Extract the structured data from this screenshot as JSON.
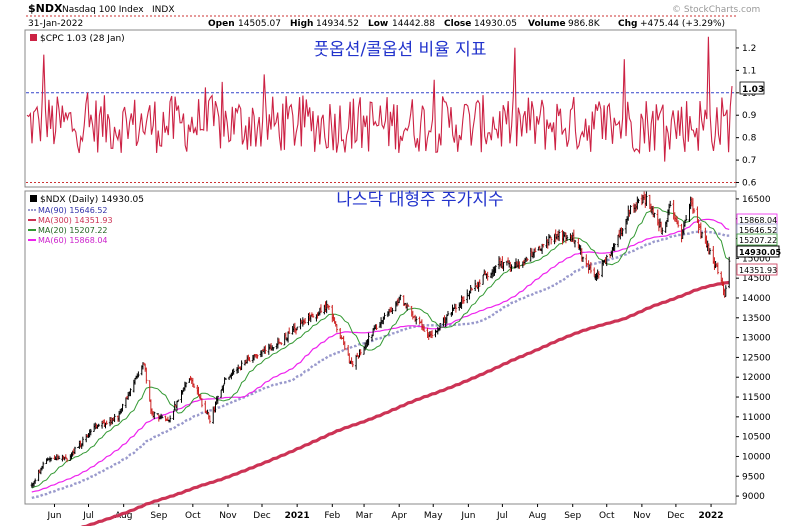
{
  "header": {
    "symbol": "$NDX",
    "name": "Nasdaq 100 Index",
    "exchange": "INDX",
    "date": "31-Jan-2022",
    "watermark": "© StockCharts.com",
    "open_label": "Open",
    "open": "14505.07",
    "high_label": "High",
    "high": "14934.52",
    "low_label": "Low",
    "low": "14442.88",
    "close_label": "Close",
    "close": "14930.05",
    "volume_label": "Volume",
    "volume": "986.8K",
    "chg_label": "Chg",
    "chg": "+475.44 (+3.29%)"
  },
  "chart_data": [
    {
      "type": "line",
      "panel": "top",
      "title": "풋옵션/콜옵션 비율 지표",
      "legend": "$CPC 1.03 (28 Jan)",
      "series": [
        {
          "name": "$CPC",
          "color": "#cc2244",
          "last": 1.03
        }
      ],
      "y_ticks": [
        0.6,
        0.7,
        0.8,
        0.9,
        1.0,
        1.1,
        1.2
      ],
      "ylim": [
        0.58,
        1.28
      ],
      "reference_line": 1.0,
      "last_value_label": "1.03",
      "grid": false
    },
    {
      "type": "line",
      "panel": "bottom",
      "title": "나스닥 대형주 주가지수",
      "legend_main": "$NDX (Daily) 14930.05",
      "series": [
        {
          "name": "MA(90) 15646.52",
          "color": "#9999cc",
          "style": "dotted",
          "last": 15646.52
        },
        {
          "name": "MA(300) 14351.93",
          "color": "#cc3355",
          "style": "thick",
          "last": 14351.93
        },
        {
          "name": "MA(20) 15207.22",
          "color": "#339933",
          "style": "solid",
          "last": 15207.22
        },
        {
          "name": "MA(60) 15868.04",
          "color": "#ee22ee",
          "style": "solid",
          "last": 15868.04
        }
      ],
      "y_ticks": [
        9000,
        9500,
        10000,
        10500,
        11000,
        11500,
        12000,
        12500,
        13000,
        13500,
        14000,
        14500,
        15000,
        15500,
        16000,
        16500
      ],
      "ylim": [
        8800,
        16700
      ],
      "price_tags": [
        "15868.04",
        "15646.52",
        "15207.22",
        "14930.05",
        "14351.93"
      ],
      "x_labels": [
        "Jun",
        "Jul",
        "Aug",
        "Sep",
        "Oct",
        "Nov",
        "Dec",
        "2021",
        "Feb",
        "Mar",
        "Apr",
        "May",
        "Jun",
        "Jul",
        "Aug",
        "Sep",
        "Oct",
        "Nov",
        "Dec",
        "2022"
      ],
      "price_anchors": [
        [
          "2020-05-26",
          9300
        ],
        [
          "2020-06-10",
          10000
        ],
        [
          "2020-06-26",
          9950
        ],
        [
          "2020-07-20",
          10700
        ],
        [
          "2020-08-10",
          11000
        ],
        [
          "2020-09-02",
          12400
        ],
        [
          "2020-09-08",
          11100
        ],
        [
          "2020-09-23",
          10900
        ],
        [
          "2020-10-12",
          12000
        ],
        [
          "2020-10-30",
          10950
        ],
        [
          "2020-11-12",
          11900
        ],
        [
          "2020-12-01",
          12400
        ],
        [
          "2020-12-31",
          12900
        ],
        [
          "2021-01-25",
          13500
        ],
        [
          "2021-02-12",
          13800
        ],
        [
          "2021-03-04",
          12300
        ],
        [
          "2021-03-22",
          13100
        ],
        [
          "2021-04-16",
          14000
        ],
        [
          "2021-05-12",
          13000
        ],
        [
          "2021-06-14",
          14100
        ],
        [
          "2021-07-12",
          14900
        ],
        [
          "2021-07-28",
          14800
        ],
        [
          "2021-08-31",
          15600
        ],
        [
          "2021-09-15",
          15500
        ],
        [
          "2021-10-04",
          14500
        ],
        [
          "2021-10-22",
          15300
        ],
        [
          "2021-11-05",
          16300
        ],
        [
          "2021-11-19",
          16500
        ],
        [
          "2021-12-03",
          15700
        ],
        [
          "2021-12-10",
          16300
        ],
        [
          "2021-12-20",
          15600
        ],
        [
          "2021-12-28",
          16500
        ],
        [
          "2022-01-05",
          15700
        ],
        [
          "2022-01-18",
          14900
        ],
        [
          "2022-01-27",
          14100
        ],
        [
          "2022-01-31",
          14930
        ]
      ],
      "grid": false
    }
  ]
}
